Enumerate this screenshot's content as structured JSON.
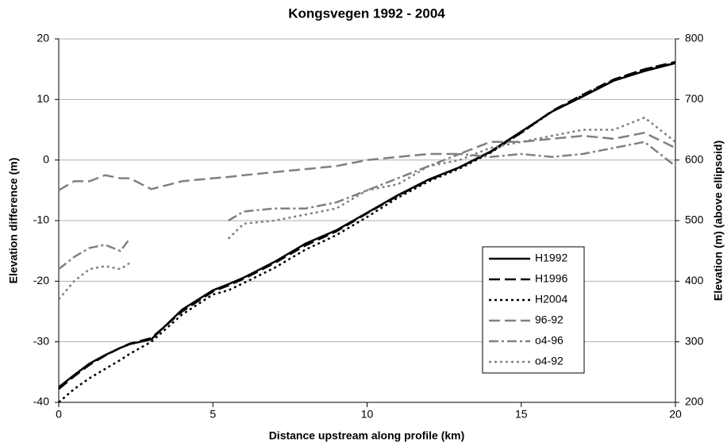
{
  "chart_data": {
    "type": "line",
    "title": "Kongsvegen 1992 - 2004",
    "x_label": "Distance upstream along profile (km)",
    "y_label": "Elevation difference (m)",
    "y2_label": "Elevation (m) (above ellipsoid)",
    "x": [
      0,
      0.5,
      1,
      1.5,
      2,
      2.3,
      3,
      4,
      5,
      5.5,
      6,
      7,
      8,
      9,
      10,
      11,
      12,
      13,
      14,
      15,
      16,
      17,
      18,
      19,
      20
    ],
    "xlim": [
      0,
      20
    ],
    "xticks": [
      0,
      5,
      10,
      15,
      20
    ],
    "ylim": [
      -40,
      20
    ],
    "yticks": [
      -40,
      -30,
      -20,
      -10,
      0,
      10,
      20
    ],
    "y2lim": [
      200,
      800
    ],
    "y2ticks": [
      200,
      300,
      400,
      500,
      600,
      700,
      800
    ],
    "grid": true,
    "legend": "lower right",
    "series": [
      {
        "name": "H1992",
        "color": "#000000",
        "dash": "solid",
        "axis": "y2",
        "values": [
          225,
          245,
          264,
          278,
          290,
          296,
          304,
          353,
          385,
          395,
          406,
          432,
          462,
          484,
          513,
          542,
          568,
          588,
          614,
          647,
          680,
          705,
          731,
          747,
          760
        ]
      },
      {
        "name": "H1996",
        "color": "#000000",
        "dash": "long-dash",
        "axis": "y2",
        "values": [
          222,
          243,
          262,
          277,
          290,
          297,
          306,
          350,
          383,
          393,
          404,
          430,
          459,
          482,
          512,
          541,
          567,
          588,
          613,
          645,
          681,
          708,
          733,
          750,
          762
        ]
      },
      {
        "name": "H2004",
        "color": "#000000",
        "dash": "dot",
        "axis": "y2",
        "values": [
          200,
          222,
          240,
          255,
          270,
          280,
          300,
          345,
          378,
          385,
          397,
          422,
          452,
          476,
          506,
          538,
          565,
          586,
          612,
          645,
          680,
          707,
          732,
          750,
          760
        ]
      },
      {
        "name": "96-92",
        "color": "#808080",
        "dash": "long-dash",
        "axis": "y",
        "values": [
          -5,
          -3.5,
          -3.5,
          -2.5,
          -3,
          -3,
          -4.8,
          -3.5,
          -3,
          -2.8,
          -2.5,
          -2,
          -1.5,
          -1,
          0,
          0.5,
          1,
          1,
          3,
          3,
          3.5,
          4,
          3.5,
          4.5,
          2
        ]
      },
      {
        "name": "o4-96",
        "color": "#808080",
        "dash": "dash-dot",
        "axis": "y",
        "values": [
          -18,
          -16,
          -14.5,
          -14,
          -15,
          -13,
          null,
          null,
          null,
          -10,
          -8.5,
          -8,
          -8,
          -7,
          -5,
          -3,
          -1,
          1,
          0.5,
          1,
          0.5,
          1,
          2,
          3,
          -1
        ]
      },
      {
        "name": "o4-92",
        "color": "#808080",
        "dash": "dot",
        "axis": "y",
        "values": [
          -23,
          -20,
          -18,
          -17.5,
          -18,
          -17,
          null,
          null,
          null,
          -13,
          -10.5,
          -10,
          -9,
          -8,
          -5,
          -4,
          -1,
          0,
          2,
          3,
          4,
          5,
          5,
          7,
          3
        ]
      }
    ]
  }
}
